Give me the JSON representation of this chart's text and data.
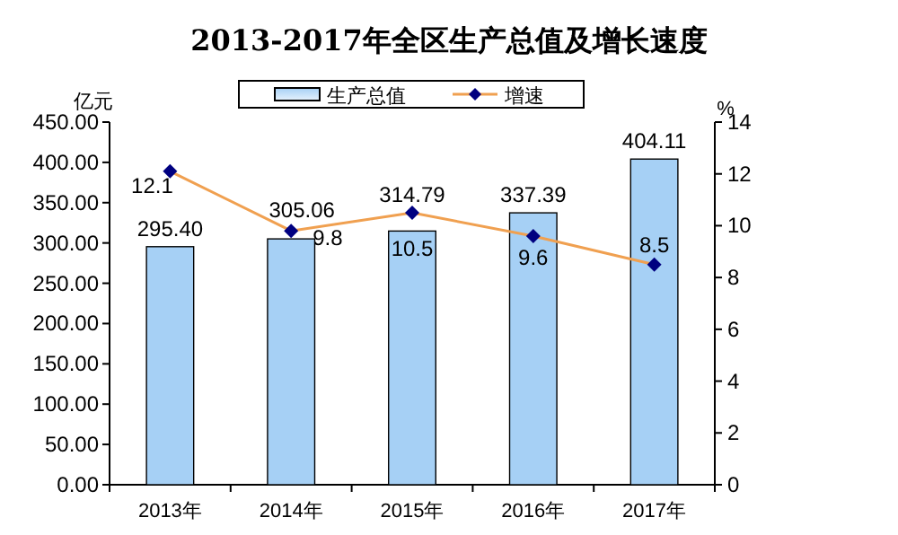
{
  "chart_data": {
    "type": "bar",
    "title": "2013-2017年全区生产总值及增长速度",
    "ylabel": "亿元",
    "y2label": "%",
    "categories": [
      "2013年",
      "2014年",
      "2015年",
      "2016年",
      "2017年"
    ],
    "series": [
      {
        "name": "生产总值",
        "color": "#a6d0f5",
        "values": [
          295.4,
          305.06,
          314.79,
          337.39,
          404.11
        ],
        "value_labels": [
          "295.40",
          "305.06",
          "314.79",
          "337.39",
          "404.11"
        ]
      },
      {
        "name": "增速",
        "type": "line",
        "axis": "y2",
        "color": "#f0a050",
        "marker": "diamond",
        "values": [
          12.1,
          9.8,
          10.5,
          9.6,
          8.5
        ],
        "value_labels": [
          "12.1",
          "9.8",
          "10.5",
          "9.6",
          "8.5"
        ]
      }
    ],
    "ylim": [
      0,
      450
    ],
    "yticks": [
      {
        "value": 0,
        "label": "0.00"
      },
      {
        "value": 50,
        "label": "50.00"
      },
      {
        "value": 100,
        "label": "100.00"
      },
      {
        "value": 150,
        "label": "150.00"
      },
      {
        "value": 200,
        "label": "200.00"
      },
      {
        "value": 250,
        "label": "250.00"
      },
      {
        "value": 300,
        "label": "300.00"
      },
      {
        "value": 350,
        "label": "350.00"
      },
      {
        "value": 400,
        "label": "400.00"
      },
      {
        "value": 450,
        "label": "450.00"
      }
    ],
    "y2lim": [
      0,
      14
    ],
    "y2ticks": [
      0,
      2,
      4,
      6,
      8,
      10,
      12,
      14
    ],
    "grid": false,
    "legend": "top"
  }
}
